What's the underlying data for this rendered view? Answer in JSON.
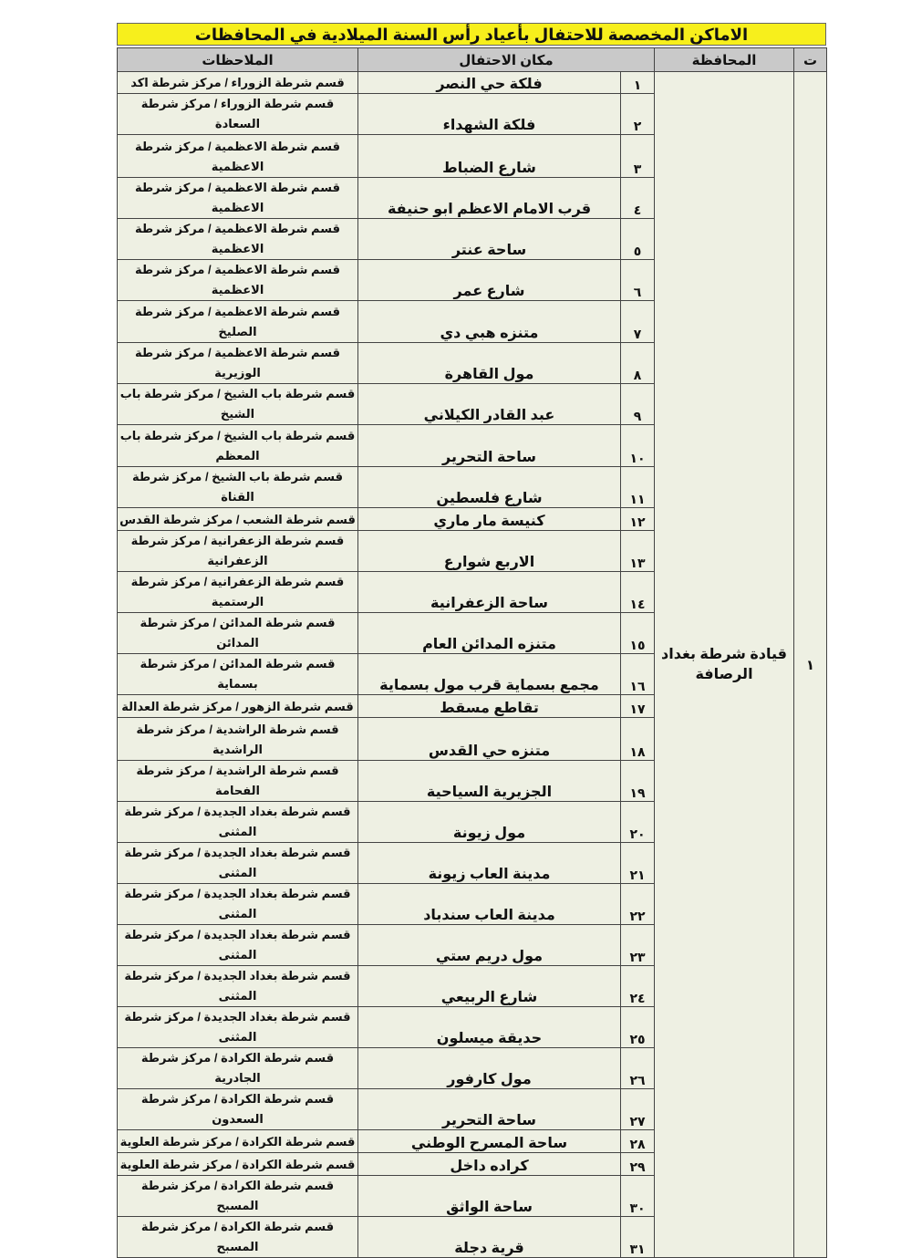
{
  "title": "الاماكن المخصصة للاحتفال بأعياد رأس السنة الميلادية في المحافظات",
  "headers": {
    "t": "ت",
    "province": "المحافظة",
    "place": "مكان الاحتفال",
    "notes": "الملاحظات"
  },
  "group": {
    "t": "١",
    "province": "قيادة شرطة بغداد الرصافة"
  },
  "rows": [
    {
      "n": "١",
      "place": "فلكة حي النصر",
      "notes": "قسم شرطة الزوراء / مركز شرطة اكد"
    },
    {
      "n": "٢",
      "place": "فلكة الشهداء",
      "notes": "قسم شرطة الزوراء / مركز شرطة السعادة"
    },
    {
      "n": "٣",
      "place": "شارع الضباط",
      "notes": "قسم شرطة الاعظمية / مركز شرطة\nالاعظمية"
    },
    {
      "n": "٤",
      "place": "قرب الامام الاعظم ابو حنيفة",
      "notes": "قسم شرطة الاعظمية / مركز شرطة\nالاعظمية"
    },
    {
      "n": "٥",
      "place": "ساحة عنتر",
      "notes": "قسم شرطة الاعظمية / مركز شرطة\nالاعظمية"
    },
    {
      "n": "٦",
      "place": "شارع عمر",
      "notes": "قسم شرطة الاعظمية / مركز شرطة\nالاعظمية"
    },
    {
      "n": "٧",
      "place": "متنزه هبي دي",
      "notes": "قسم شرطة الاعظمية / مركز شرطة الصليخ"
    },
    {
      "n": "٨",
      "place": "مول القاهرة",
      "notes": "قسم شرطة الاعظمية / مركز شرطة الوزيرية"
    },
    {
      "n": "٩",
      "place": "عبد القادر الكيلاني",
      "notes": "قسم شرطة باب الشيخ / مركز شرطة باب\nالشيخ"
    },
    {
      "n": "١٠",
      "place": "ساحة التحرير",
      "notes": "قسم شرطة باب الشيخ / مركز شرطة باب\nالمعظم"
    },
    {
      "n": "١١",
      "place": "شارع فلسطين",
      "notes": "قسم شرطة باب الشيخ / مركز شرطة القناة"
    },
    {
      "n": "١٢",
      "place": "كنيسة مار ماري",
      "notes": "قسم شرطة الشعب / مركز شرطة القدس"
    },
    {
      "n": "١٣",
      "place": "الاربع شوارع",
      "notes": "قسم شرطة الزعفرانية / مركز شرطة\nالزعفرانية"
    },
    {
      "n": "١٤",
      "place": "ساحة الزعفرانية",
      "notes": "قسم شرطة الزعفرانية / مركز شرطة\nالرستمية"
    },
    {
      "n": "١٥",
      "place": "متنزه المدائن العام",
      "notes": "قسم شرطة المدائن / مركز شرطة المدائن"
    },
    {
      "n": "١٦",
      "place": "مجمع بسماية قرب مول بسماية",
      "notes": "قسم شرطة المدائن / مركز شرطة بسماية"
    },
    {
      "n": "١٧",
      "place": "تقاطع مسقط",
      "notes": "قسم شرطة الزهور / مركز شرطة العدالة"
    },
    {
      "n": "١٨",
      "place": "متنزه حي القدس",
      "notes": "قسم شرطة الراشدية / مركز شرطة الراشدية"
    },
    {
      "n": "١٩",
      "place": "الجزيرية السياحية",
      "notes": "قسم شرطة الراشدية / مركز شرطة الفحامة"
    },
    {
      "n": "٢٠",
      "place": "مول زيونة",
      "notes": "قسم شرطة بغداد الجديدة / مركز شرطة\nالمثنى"
    },
    {
      "n": "٢١",
      "place": "مدينة العاب زيونة",
      "notes": "قسم شرطة بغداد الجديدة / مركز شرطة\nالمثنى"
    },
    {
      "n": "٢٢",
      "place": "مدينة العاب سندباد",
      "notes": "قسم شرطة بغداد الجديدة / مركز شرطة\nالمثنى"
    },
    {
      "n": "٢٣",
      "place": "مول دريم ستي",
      "notes": "قسم شرطة بغداد الجديدة / مركز شرطة\nالمثنى"
    },
    {
      "n": "٢٤",
      "place": "شارع الربيعي",
      "notes": "قسم شرطة بغداد الجديدة / مركز شرطة\nالمثنى"
    },
    {
      "n": "٢٥",
      "place": "حديقة ميسلون",
      "notes": "قسم شرطة بغداد الجديدة / مركز شرطة\nالمثنى"
    },
    {
      "n": "٢٦",
      "place": "مول كارفور",
      "notes": "قسم شرطة الكرادة / مركز شرطة الجادرية"
    },
    {
      "n": "٢٧",
      "place": "ساحة التحرير",
      "notes": "قسم شرطة الكرادة / مركز شرطة السعدون"
    },
    {
      "n": "٢٨",
      "place": "ساحة المسرح الوطني",
      "notes": "قسم شرطة الكرادة / مركز شرطة العلوية"
    },
    {
      "n": "٢٩",
      "place": "كراده داخل",
      "notes": "قسم شرطة الكرادة / مركز شرطة العلوية"
    },
    {
      "n": "٣٠",
      "place": "ساحة الواثق",
      "notes": "قسم شرطة الكرادة / مركز شرطة المسبح"
    },
    {
      "n": "٣١",
      "place": "قرية دجلة",
      "notes": "قسم شرطة الكرادة / مركز شرطة المسبح"
    }
  ]
}
